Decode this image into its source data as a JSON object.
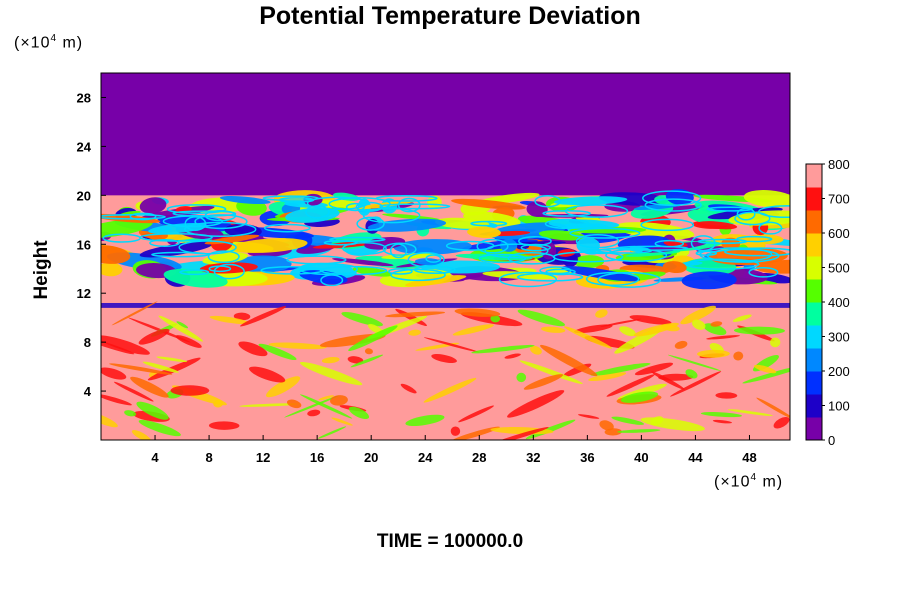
{
  "chart_data": {
    "type": "heatmap",
    "title": "Potential Temperature Deviation",
    "ylabel": "Height",
    "y_unit_prefix": "(×10",
    "y_unit_exp": "4",
    "y_unit_suffix": " m)",
    "x_unit_prefix": "(×10",
    "x_unit_exp": "4",
    "x_unit_suffix": " m)",
    "xlim": [
      0,
      51
    ],
    "ylim": [
      0,
      30
    ],
    "x_ticks": [
      4,
      8,
      12,
      16,
      20,
      24,
      28,
      32,
      36,
      40,
      44,
      48
    ],
    "y_ticks": [
      4,
      8,
      12,
      16,
      20,
      24,
      28
    ],
    "colorbar": {
      "range": [
        0,
        800
      ],
      "ticks": [
        0,
        100,
        200,
        300,
        400,
        500,
        600,
        700,
        800
      ]
    },
    "field_summary": {
      "upper_uniform_value": 0,
      "upper_uniform_above_height": 20,
      "lower_background_value": 800,
      "mixed_layer_bottom": 13,
      "mixed_layer_top": 20,
      "thin_low_band_height": 11
    },
    "time_label": "TIME =",
    "time_value": "100000.0"
  },
  "colors": {
    "upper": "#7700a8",
    "background": "#ff9b9b",
    "palette": [
      "#7700a8",
      "#1d00c8",
      "#0030ff",
      "#0088ff",
      "#00d8ff",
      "#00ffa0",
      "#55ff00",
      "#d8ff00",
      "#ffd000",
      "#ff6a00",
      "#ff1010",
      "#ff9b9b"
    ]
  }
}
